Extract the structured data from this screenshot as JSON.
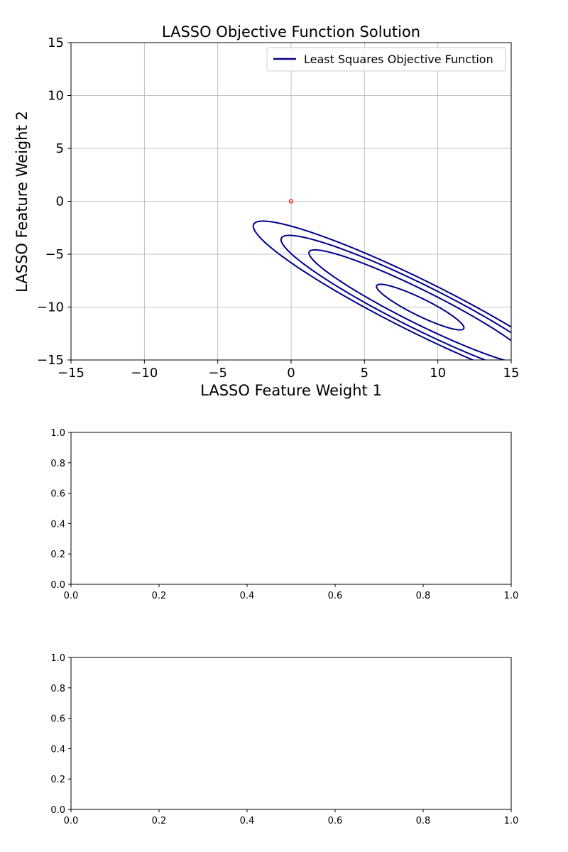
{
  "chart_data": [
    {
      "type": "line",
      "title": "LASSO Objective Function Solution",
      "xlabel": "LASSO Feature Weight 1",
      "ylabel": "LASSO Feature Weight 2",
      "xlim": [
        -15,
        15
      ],
      "ylim": [
        -15,
        15
      ],
      "xticks": [
        -15,
        -10,
        -5,
        0,
        5,
        10,
        15
      ],
      "yticks": [
        -15,
        -10,
        -5,
        0,
        5,
        10,
        15
      ],
      "xtick_labels": [
        "−15",
        "−10",
        "−5",
        "0",
        "5",
        "10",
        "15"
      ],
      "ytick_labels": [
        "−15",
        "−10",
        "−5",
        "0",
        "5",
        "10",
        "15"
      ],
      "grid": true,
      "legend": {
        "position": "top-right",
        "entries": [
          "Least Squares Objective Function"
        ]
      },
      "series": [
        {
          "name": "Least Squares Objective Function",
          "color": "#00008b",
          "kind": "contour",
          "center": [
            8.8,
            -10.0
          ],
          "contours": [
            {
              "semi_major": 3.6,
              "semi_minor": 0.75,
              "angle_deg": -35
            },
            {
              "semi_major": 9.2,
              "semi_minor": 1.45,
              "angle_deg": -35
            },
            {
              "semi_major": 11.5,
              "semi_minor": 1.9,
              "angle_deg": -35
            },
            {
              "semi_major": 13.8,
              "semi_minor": 2.25,
              "angle_deg": -35
            }
          ]
        }
      ],
      "marker": {
        "x": 0,
        "y": 0,
        "color": "#ff0000"
      }
    },
    {
      "type": "line",
      "title": "",
      "xlim": [
        0,
        1
      ],
      "ylim": [
        0,
        1
      ],
      "xticks": [
        0,
        0.2,
        0.4,
        0.6,
        0.8,
        1.0
      ],
      "yticks": [
        0,
        0.2,
        0.4,
        0.6,
        0.8,
        1.0
      ],
      "xtick_labels": [
        "0.0",
        "0.2",
        "0.4",
        "0.6",
        "0.8",
        "1.0"
      ],
      "ytick_labels": [
        "0.0",
        "0.2",
        "0.4",
        "0.6",
        "0.8",
        "1.0"
      ],
      "grid": false,
      "series": []
    },
    {
      "type": "line",
      "title": "",
      "xlim": [
        0,
        1
      ],
      "ylim": [
        0,
        1
      ],
      "xticks": [
        0,
        0.2,
        0.4,
        0.6,
        0.8,
        1.0
      ],
      "yticks": [
        0,
        0.2,
        0.4,
        0.6,
        0.8,
        1.0
      ],
      "xtick_labels": [
        "0.0",
        "0.2",
        "0.4",
        "0.6",
        "0.8",
        "1.0"
      ],
      "ytick_labels": [
        "0.0",
        "0.2",
        "0.4",
        "0.6",
        "0.8",
        "1.0"
      ],
      "grid": false,
      "series": []
    }
  ]
}
